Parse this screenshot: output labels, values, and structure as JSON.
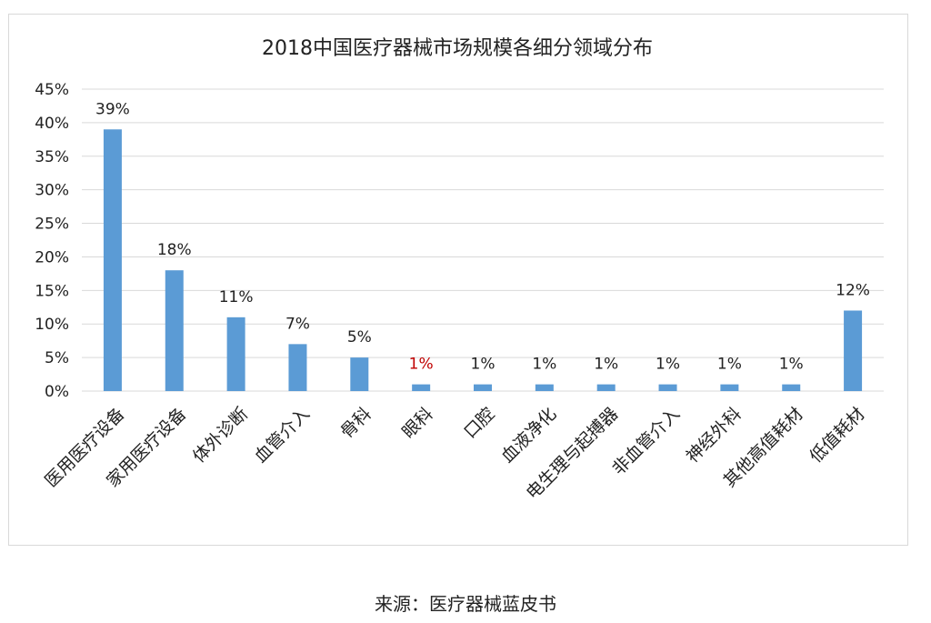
{
  "source_text": "来源：医疗器械蓝皮书",
  "chart_data": {
    "type": "bar",
    "title": "2018中国医疗器械市场规模各细分领域分布",
    "categories": [
      "医用医疗设备",
      "家用医疗设备",
      "体外诊断",
      "血管介入",
      "骨科",
      "眼科",
      "口腔",
      "血液净化",
      "电生理与起搏器",
      "非血管介入",
      "神经外科",
      "其他高值耗材",
      "低值耗材"
    ],
    "values": [
      39,
      18,
      11,
      7,
      5,
      1,
      1,
      1,
      1,
      1,
      1,
      1,
      12
    ],
    "value_labels": [
      "39%",
      "18%",
      "11%",
      "7%",
      "5%",
      "1%",
      "1%",
      "1%",
      "1%",
      "1%",
      "1%",
      "1%",
      "12%"
    ],
    "ylim": [
      0,
      45
    ],
    "y_ticks": [
      "0%",
      "5%",
      "10%",
      "15%",
      "20%",
      "25%",
      "30%",
      "35%",
      "40%",
      "45%"
    ],
    "grid": true,
    "bar_color": "#5b9bd5",
    "label_color": "#222222",
    "highlight_label_color": "#c00000",
    "highlight_index": 5,
    "grid_color": "#d9d9d9"
  }
}
